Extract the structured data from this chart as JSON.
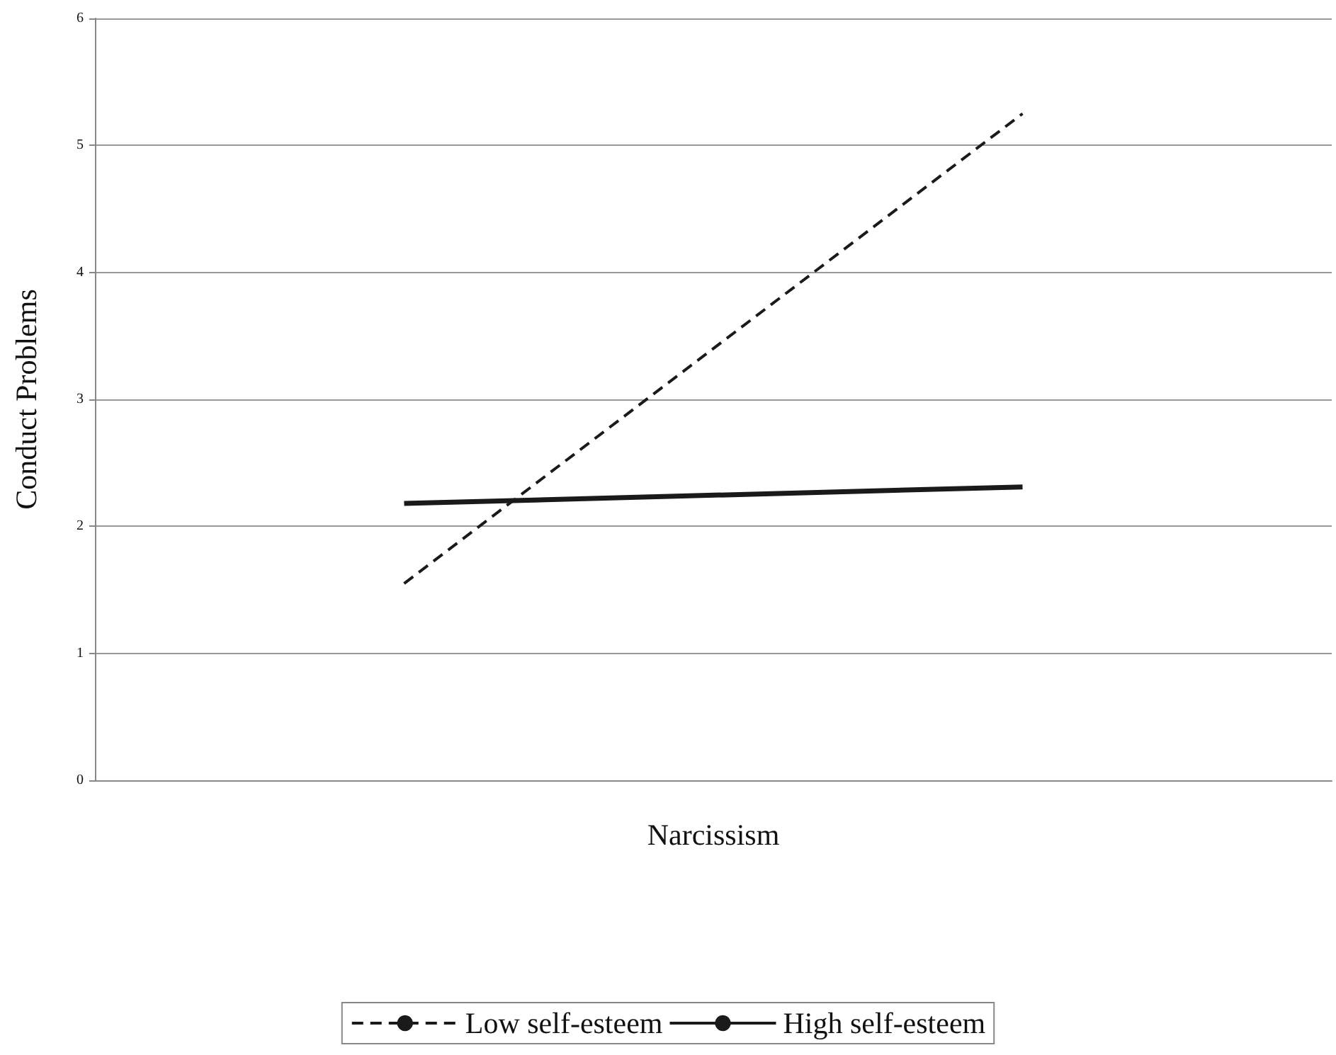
{
  "chart_data": {
    "type": "line",
    "xlabel": "Narcissism",
    "ylabel": "Conduct Problems",
    "categories": [
      null,
      null
    ],
    "series": [
      {
        "name": "Low self-esteem",
        "color": "#1a1a1a",
        "line_style": "dashed",
        "values": [
          1.55,
          5.25
        ]
      },
      {
        "name": "High self-esteem",
        "color": "#1a1a1a",
        "line_style": "solid",
        "values": [
          2.18,
          2.31
        ]
      }
    ],
    "ylim": [
      0,
      6
    ],
    "yticks": [
      0,
      1,
      2,
      3,
      4,
      5,
      6
    ],
    "grid": "y",
    "legend": "bottom",
    "marker": "none"
  }
}
